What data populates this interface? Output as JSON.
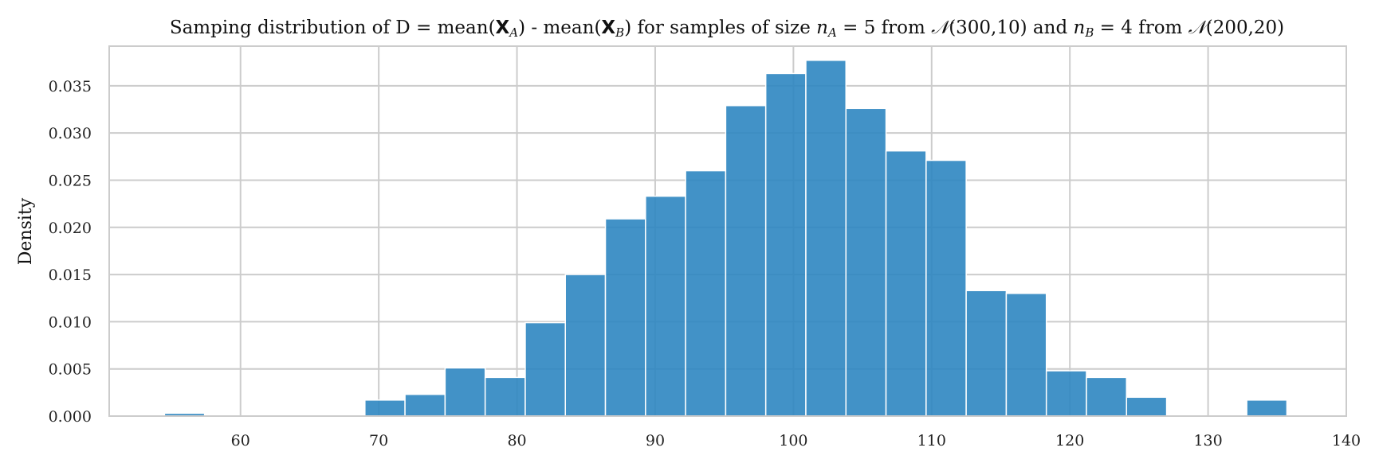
{
  "chart_data": {
    "type": "bar",
    "subtype": "histogram",
    "title": "Samping distribution of D = mean(𝐗_A) - mean(𝐗_B) for samples of size n_A = 5 from 𝒩(300,10) and n_B = 4 from 𝒩(200,20)",
    "title_parts": {
      "p1": "Samping distribution of D = mean(",
      "x_bold": "X",
      "sub_a": "A",
      "p2": ") - mean(",
      "sub_b": "B",
      "p3": ") for samples of size ",
      "n": "n",
      "p4": " = 5 from ",
      "normal": "𝒩",
      "p5": "(300,10) and ",
      "p6": " = 4 from ",
      "p7": "(200,20)"
    },
    "xlabel": "",
    "ylabel": "Density",
    "xlim": [
      50.5,
      140
    ],
    "ylim": [
      0,
      0.0392
    ],
    "xticks": [
      60,
      70,
      80,
      90,
      100,
      110,
      120,
      130,
      140
    ],
    "yticks": [
      "0.000",
      "0.005",
      "0.010",
      "0.015",
      "0.020",
      "0.025",
      "0.030",
      "0.035"
    ],
    "ytick_values": [
      0,
      0.005,
      0.01,
      0.015,
      0.02,
      0.025,
      0.03,
      0.035
    ],
    "grid": true,
    "bar_color": "#2e86c1",
    "bin_edges": [
      54.5,
      57.4,
      60.3,
      63.2,
      66.1,
      69.0,
      71.9,
      74.8,
      77.7,
      80.6,
      83.5,
      86.4,
      89.3,
      92.2,
      95.1,
      98.0,
      100.9,
      103.8,
      106.7,
      109.6,
      112.5,
      115.4,
      118.3,
      121.2,
      124.1,
      127.0,
      129.9,
      132.8,
      135.7
    ],
    "values": [
      0.0003,
      0,
      0,
      0,
      0,
      0.0017,
      0.0023,
      0.0051,
      0.0041,
      0.0099,
      0.015,
      0.0209,
      0.0233,
      0.026,
      0.0329,
      0.0363,
      0.0377,
      0.0326,
      0.0281,
      0.0271,
      0.0133,
      0.013,
      0.0048,
      0.0041,
      0.002,
      0,
      0,
      0.0017
    ]
  }
}
